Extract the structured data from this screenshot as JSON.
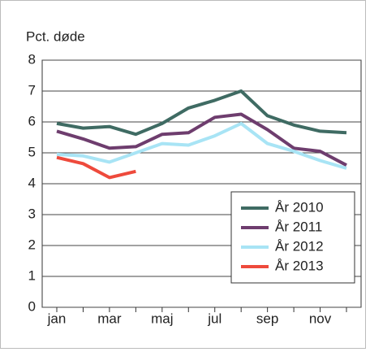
{
  "chart_data": {
    "type": "line",
    "y_label": "Pct. døde",
    "categories": [
      "jan",
      null,
      "mar",
      null,
      "maj",
      null,
      "jul",
      null,
      "sep",
      null,
      "nov",
      null
    ],
    "series": [
      {
        "name": "År 2010",
        "color": "#3f6b63",
        "values": [
          5.95,
          5.8,
          5.85,
          5.6,
          5.95,
          6.45,
          6.7,
          7.0,
          6.2,
          5.9,
          5.7,
          5.65
        ]
      },
      {
        "name": "År 2011",
        "color": "#6e3d6e",
        "values": [
          5.7,
          5.45,
          5.15,
          5.2,
          5.6,
          5.65,
          6.15,
          6.25,
          5.75,
          5.15,
          5.05,
          4.6
        ]
      },
      {
        "name": "År 2012",
        "color": "#a8e4f5",
        "values": [
          4.95,
          4.9,
          4.7,
          5.0,
          5.3,
          5.25,
          5.55,
          5.95,
          5.3,
          5.05,
          4.75,
          4.5
        ]
      },
      {
        "name": "År 2013",
        "color": "#ee4a3c",
        "values": [
          4.85,
          4.65,
          4.2,
          4.4,
          null,
          null,
          null,
          null,
          null,
          null,
          null,
          null
        ]
      }
    ],
    "ylim": [
      0,
      8
    ],
    "yticks": [
      0,
      1,
      2,
      3,
      4,
      5,
      6,
      7,
      8
    ],
    "grid": true,
    "legend": "lower right"
  }
}
